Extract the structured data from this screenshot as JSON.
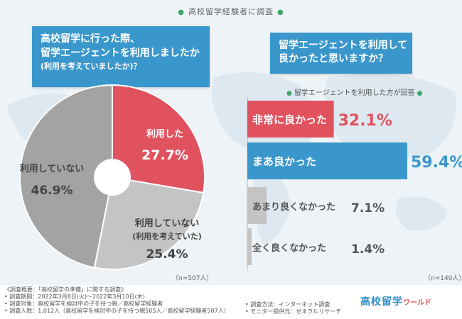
{
  "header": {
    "title": "高校留学経験者に調査"
  },
  "question1": {
    "line1": "高校留学に行った際、",
    "line2": "留学エージェントを利用しましたか",
    "line3": "(利用を考えていましたか)？"
  },
  "question2": {
    "line1": "留学エージェントを利用して",
    "line2": "良かったと思いますか？",
    "caption": "留学エージェントを利用した方が回答"
  },
  "notes": {
    "pie_n": "（n=507人）",
    "bar_n": "（n=140人）"
  },
  "colors": {
    "red": "#e1525f",
    "blue": "#3a97cc",
    "gray": "#a3a3a3",
    "light_gray": "#c4c4c4"
  },
  "chart_data": [
    {
      "type": "pie",
      "n": "n=507人",
      "slices": [
        {
          "label": "利用した",
          "value": 27.7,
          "value_label": "27.7%",
          "color": "#e1525f"
        },
        {
          "label": "利用していない",
          "sublabel": "(利用を考えていた)",
          "value": 25.4,
          "value_label": "25.4%",
          "color": "#c4c4c4"
        },
        {
          "label": "利用していない",
          "value": 46.9,
          "value_label": "46.9%",
          "color": "#a3a3a3"
        }
      ]
    },
    {
      "type": "bar",
      "orientation": "horizontal",
      "n": "n=140人",
      "categories": [
        "非常に良かった",
        "まあ良かった",
        "あまり良くなかった",
        "全く良くなかった"
      ],
      "values": [
        32.1,
        59.4,
        7.1,
        1.4
      ],
      "value_labels": [
        "32.1%",
        "59.4%",
        "7.1%",
        "1.4%"
      ],
      "colors": [
        "#e1525f",
        "#3a97cc",
        "#c4c4c4",
        "#c4c4c4"
      ]
    }
  ],
  "footer": {
    "overview": "《調査概要：「高校留学の準備」に関する調査》",
    "period": "• 調査期間：2022年3月8日(火)～2022年3月10日(木)",
    "target": "• 調査対象：高校留学を検討中の子を持つ親／高校留学経験者",
    "count": "• 調査人数：1,012人（高校留学を検討中の子を持つ親505人／高校留学経験者507人）",
    "method": "• 調査方法：インターネット調査",
    "provider": "• モニター提供元：ゼネラルリサーチ",
    "logo_main": "高校留学",
    "logo_sub": "ワールド"
  }
}
